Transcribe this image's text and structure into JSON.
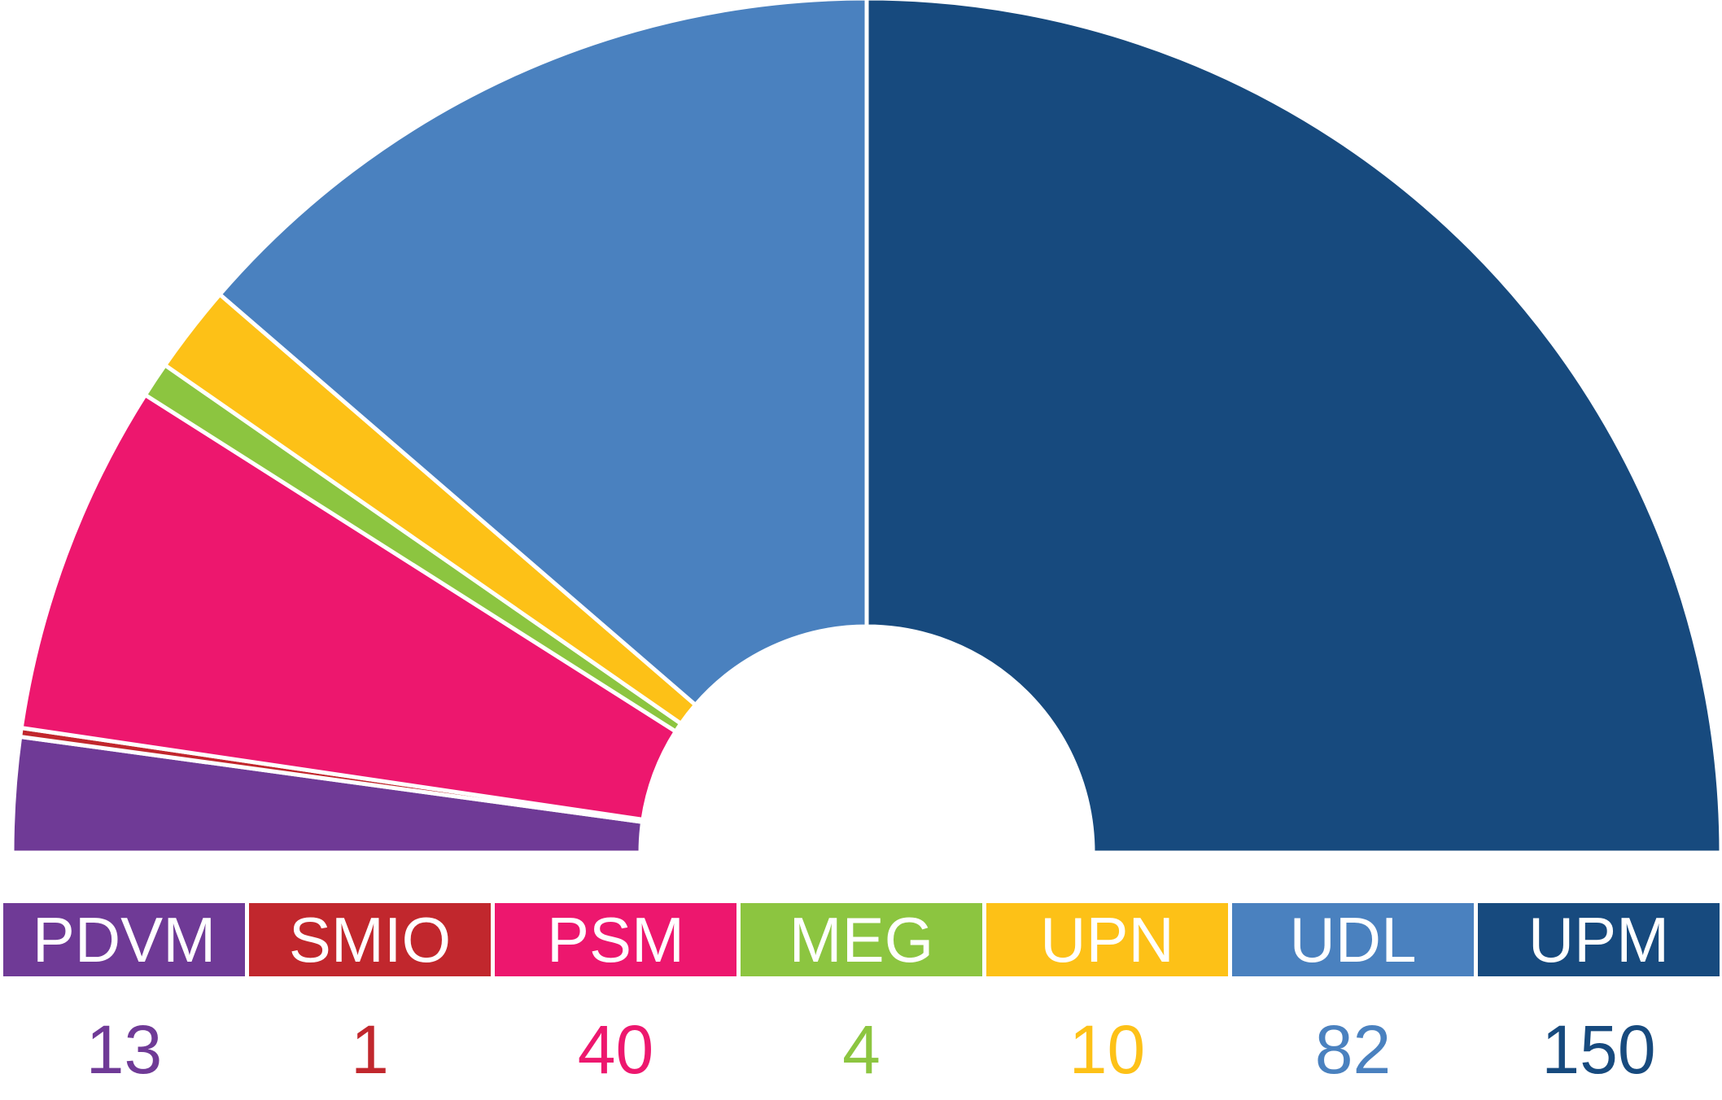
{
  "chart_data": {
    "type": "semicircle_donut",
    "categories": [
      "PDVM",
      "SMIO",
      "PSM",
      "MEG",
      "UPN",
      "UDL",
      "UPM"
    ],
    "values": [
      13,
      1,
      40,
      4,
      10,
      82,
      150
    ],
    "colors": [
      "#6f3a96",
      "#c1272d",
      "#ed176e",
      "#8cc540",
      "#fdc117",
      "#4a81bf",
      "#174a7e"
    ]
  }
}
